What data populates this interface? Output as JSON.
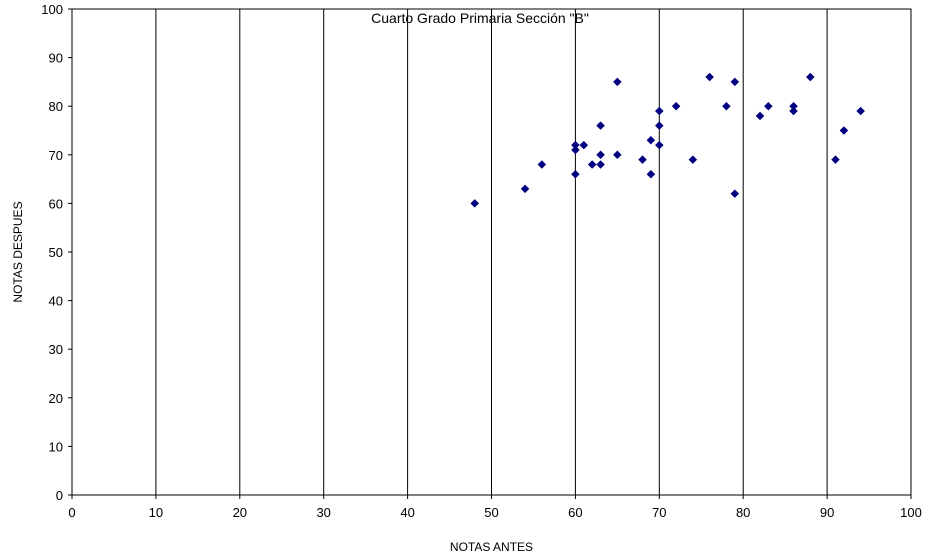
{
  "chart_data": {
    "type": "scatter",
    "title": "Cuarto Grado Primaria Sección \"B\"",
    "xlabel": "NOTAS ANTES",
    "ylabel": "NOTAS DESPUES",
    "xlim": [
      0,
      100
    ],
    "ylim": [
      0,
      100
    ],
    "xticks": [
      0,
      10,
      20,
      30,
      40,
      50,
      60,
      70,
      80,
      90,
      100
    ],
    "yticks": [
      0,
      10,
      20,
      30,
      40,
      50,
      60,
      70,
      80,
      90,
      100
    ],
    "grid": "vertical",
    "marker": "diamond",
    "marker_color": "#000080",
    "points": [
      {
        "x": 48,
        "y": 60
      },
      {
        "x": 54,
        "y": 63
      },
      {
        "x": 56,
        "y": 68
      },
      {
        "x": 60,
        "y": 72
      },
      {
        "x": 60,
        "y": 71
      },
      {
        "x": 60,
        "y": 66
      },
      {
        "x": 61,
        "y": 72
      },
      {
        "x": 62,
        "y": 68
      },
      {
        "x": 63,
        "y": 76
      },
      {
        "x": 63,
        "y": 70
      },
      {
        "x": 63,
        "y": 68
      },
      {
        "x": 65,
        "y": 85
      },
      {
        "x": 65,
        "y": 70
      },
      {
        "x": 68,
        "y": 69
      },
      {
        "x": 69,
        "y": 73
      },
      {
        "x": 69,
        "y": 66
      },
      {
        "x": 70,
        "y": 79
      },
      {
        "x": 70,
        "y": 76
      },
      {
        "x": 70,
        "y": 72
      },
      {
        "x": 72,
        "y": 80
      },
      {
        "x": 74,
        "y": 69
      },
      {
        "x": 76,
        "y": 86
      },
      {
        "x": 78,
        "y": 80
      },
      {
        "x": 79,
        "y": 85
      },
      {
        "x": 79,
        "y": 62
      },
      {
        "x": 82,
        "y": 78
      },
      {
        "x": 83,
        "y": 80
      },
      {
        "x": 86,
        "y": 80
      },
      {
        "x": 86,
        "y": 79
      },
      {
        "x": 88,
        "y": 86
      },
      {
        "x": 91,
        "y": 69
      },
      {
        "x": 92,
        "y": 75
      },
      {
        "x": 94,
        "y": 79
      }
    ]
  }
}
